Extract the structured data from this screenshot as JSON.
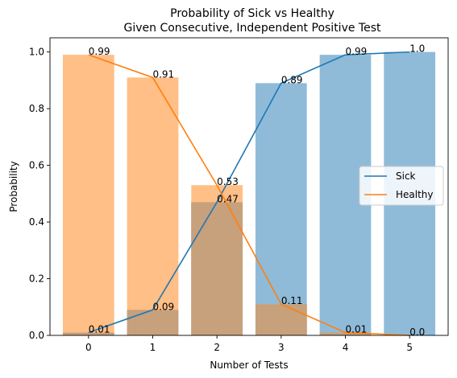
{
  "chart_data": {
    "type": "bar",
    "title": "Probability of Sick vs Healthy",
    "subtitle": "Given Consecutive, Independent Positive Test",
    "xlabel": "Number of Tests",
    "ylabel": "Probability",
    "x": [
      0,
      1,
      2,
      3,
      4,
      5
    ],
    "xlim": [
      -0.6,
      5.6
    ],
    "ylim": [
      0,
      1.05
    ],
    "yticks": [
      0.0,
      0.2,
      0.4,
      0.6,
      0.8,
      1.0
    ],
    "ytick_labels": [
      "0.0",
      "0.2",
      "0.4",
      "0.6",
      "0.8",
      "1.0"
    ],
    "grid": false,
    "legend_position": "center-right",
    "series": [
      {
        "name": "Sick",
        "values": [
          0.01,
          0.09,
          0.47,
          0.89,
          0.99,
          1.0
        ],
        "labels": [
          "0.01",
          "0.09",
          "0.47",
          "0.89",
          "0.99",
          "1.0"
        ],
        "line_color": "#1f77b4",
        "bar_color": "#8fbbd9"
      },
      {
        "name": "Healthy",
        "values": [
          0.99,
          0.91,
          0.53,
          0.11,
          0.01,
          0.0
        ],
        "labels": [
          "0.99",
          "0.91",
          "0.53",
          "0.11",
          "0.01",
          "0.0"
        ],
        "line_color": "#ff7f0e",
        "bar_color": "#ffbf86"
      }
    ],
    "overlap_color": "#c7a07c"
  }
}
